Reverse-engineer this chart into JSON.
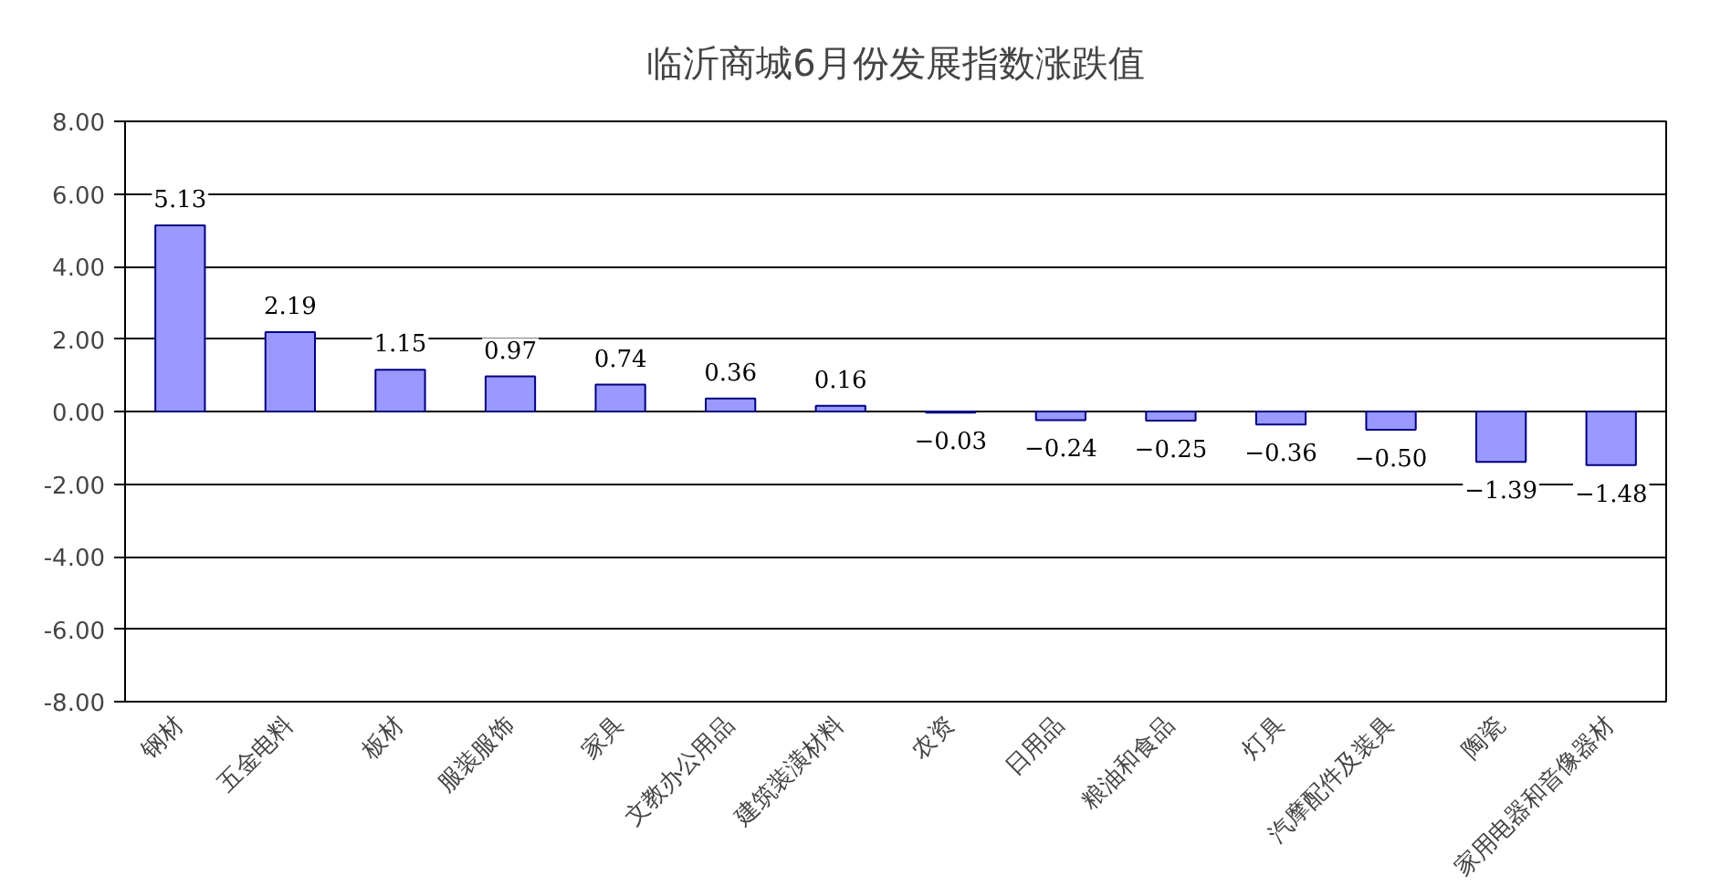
{
  "chart_data": {
    "type": "bar",
    "title": "临沂商城6月份发展指数涨跌值",
    "categories": [
      "钢材",
      "五金电料",
      "板材",
      "服装服饰",
      "家具",
      "文教办公用品",
      "建筑装潢材料",
      "农资",
      "日用品",
      "粮油和食品",
      "灯具",
      "汽摩配件及装具",
      "陶瓷",
      "家用电器和音像器材"
    ],
    "values": [
      5.13,
      2.19,
      1.15,
      0.97,
      0.74,
      0.36,
      0.16,
      -0.03,
      -0.24,
      -0.25,
      -0.36,
      -0.5,
      -1.39,
      -1.48
    ],
    "value_labels": [
      "5.13",
      "2.19",
      "1.15",
      "0.97",
      "0.74",
      "0.36",
      "0.16",
      "−0.03",
      "−0.24",
      "−0.25",
      "−0.36",
      "−0.50",
      "−1.39",
      "−1.48"
    ],
    "color": "#9999ff",
    "ylim": [
      -8,
      8
    ],
    "yticks": [
      {
        "value": -8,
        "label": "-8.00"
      },
      {
        "value": -6,
        "label": "-6.00"
      },
      {
        "value": -4,
        "label": "-4.00"
      },
      {
        "value": -2,
        "label": "-2.00"
      },
      {
        "value": 0,
        "label": "0.00"
      },
      {
        "value": 2,
        "label": "2.00"
      },
      {
        "value": 4,
        "label": "4.00"
      },
      {
        "value": 6,
        "label": "6.00"
      },
      {
        "value": 8,
        "label": "8.00"
      }
    ],
    "grid": "y"
  }
}
